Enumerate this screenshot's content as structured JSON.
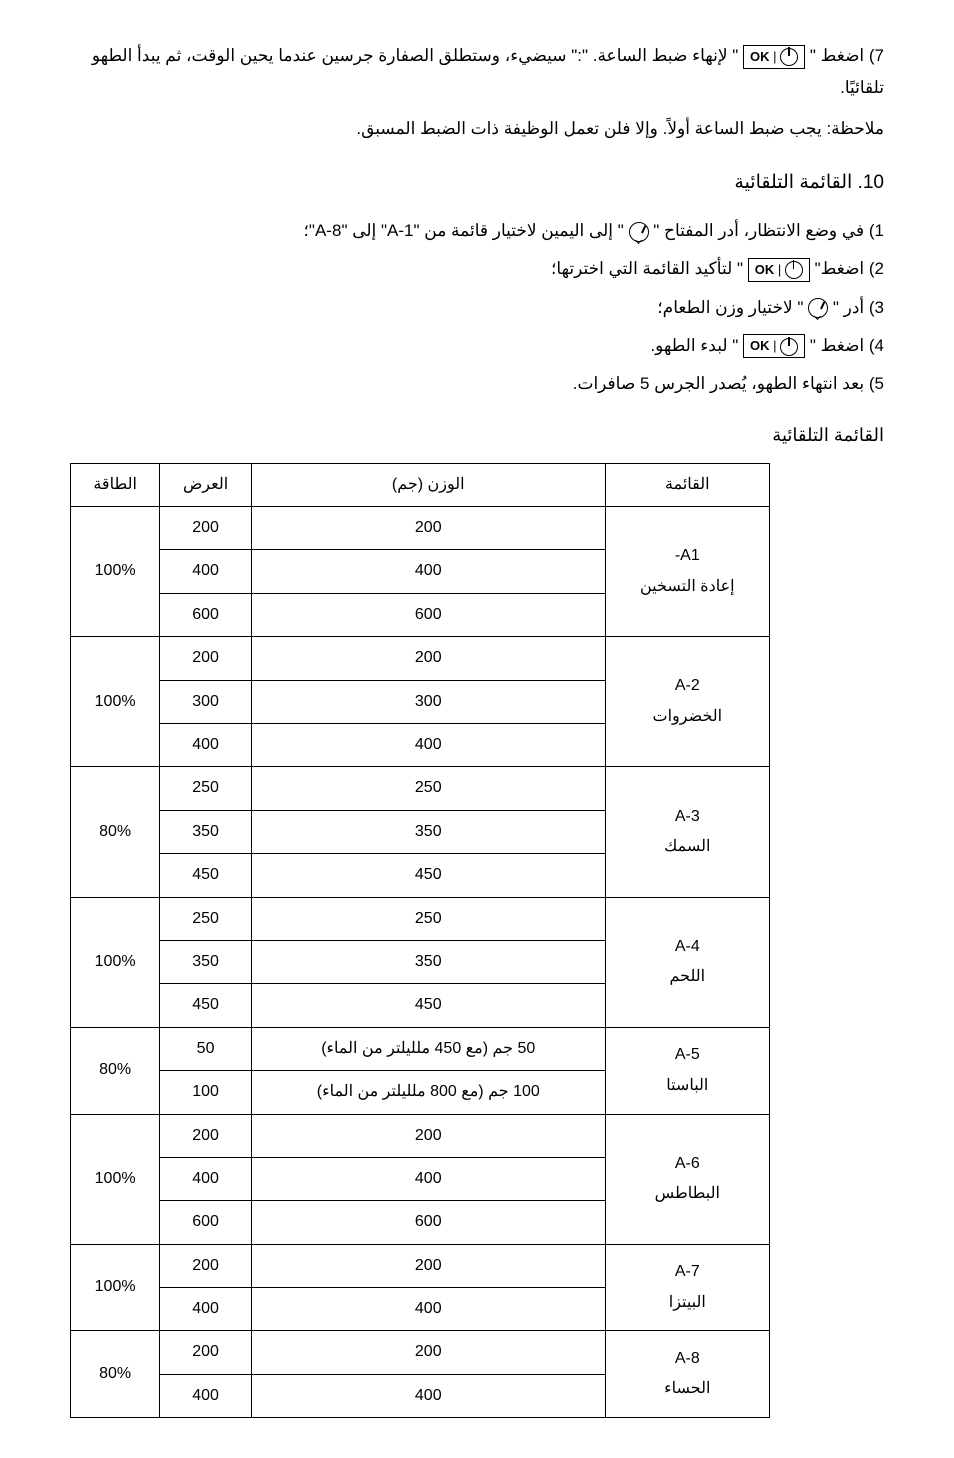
{
  "step7": {
    "num": "7)",
    "pre": "اضغط \" ",
    "ok": "OK",
    "mid": " \" لإنهاء ضبط الساعة. \":\" سيضيء، وستطلق الصفارة جرسين عندما يحين الوقت، ثم يبدأ الطهو تلقائيًا."
  },
  "note": "ملاحظة:   يجب ضبط الساعة أولاً. وإلا فلن تعمل الوظيفة ذات الضبط المسبق.",
  "heading10": "10. القائمة التلقائية",
  "s1": {
    "num": "1)",
    "pre": "في وضع الانتظار، أدر المفتاح \" ",
    "post": " \" إلى اليمين لاختيار قائمة من \"A-1\" إلى \"A-8\"؛"
  },
  "s2": {
    "num": "2)",
    "pre": "اضغط\" ",
    "ok": "OK",
    "post": " \" لتأكيد القائمة التي اخترتها؛"
  },
  "s3": {
    "num": "3)",
    "pre": "أدر \" ",
    "post": " \" لاختيار وزن الطعام؛"
  },
  "s4": {
    "num": "4)",
    "pre": "اضغط \" ",
    "ok": "OK",
    "post": " \" لبدء الطهو."
  },
  "s5": {
    "num": "5)",
    "text": "بعد انتهاء الطهو، يُصدر الجرس 5 صافرات."
  },
  "tableTitle": "القائمة التلقائية",
  "headers": {
    "menu": "القائمة",
    "weight": "الوزن (جم)",
    "display": "العرض",
    "power": "الطاقة"
  },
  "menus": {
    "a1": {
      "code": "A1-",
      "name": "إعادة التسخين",
      "power": "100%",
      "rows": [
        [
          "200",
          "200"
        ],
        [
          "400",
          "400"
        ],
        [
          "600",
          "600"
        ]
      ]
    },
    "a2": {
      "code": "A-2",
      "name": "الخضروات",
      "power": "100%",
      "rows": [
        [
          "200",
          "200"
        ],
        [
          "300",
          "300"
        ],
        [
          "400",
          "400"
        ]
      ]
    },
    "a3": {
      "code": "A-3",
      "name": "السمك",
      "power": "80%",
      "rows": [
        [
          "250",
          "250"
        ],
        [
          "350",
          "350"
        ],
        [
          "450",
          "450"
        ]
      ]
    },
    "a4": {
      "code": "A-4",
      "name": "اللحم",
      "power": "100%",
      "rows": [
        [
          "250",
          "250"
        ],
        [
          "350",
          "350"
        ],
        [
          "450",
          "450"
        ]
      ]
    },
    "a5": {
      "code": "A-5",
      "name": "الباستا",
      "power": "80%",
      "rows": [
        [
          "50 جم (مع 450 ملليلتر من الماء)",
          "50"
        ],
        [
          "100 جم (مع 800 ملليلتر من الماء)",
          "100"
        ]
      ]
    },
    "a6": {
      "code": "A-6",
      "name": "البطاطس",
      "power": "100%",
      "rows": [
        [
          "200",
          "200"
        ],
        [
          "400",
          "400"
        ],
        [
          "600",
          "600"
        ]
      ]
    },
    "a7": {
      "code": "A-7",
      "name": "البيتزا",
      "power": "100%",
      "rows": [
        [
          "200",
          "200"
        ],
        [
          "400",
          "400"
        ]
      ]
    },
    "a8": {
      "code": "A-8",
      "name": "الحساء",
      "power": "80%",
      "rows": [
        [
          "200",
          "200"
        ],
        [
          "400",
          "400"
        ]
      ]
    }
  }
}
